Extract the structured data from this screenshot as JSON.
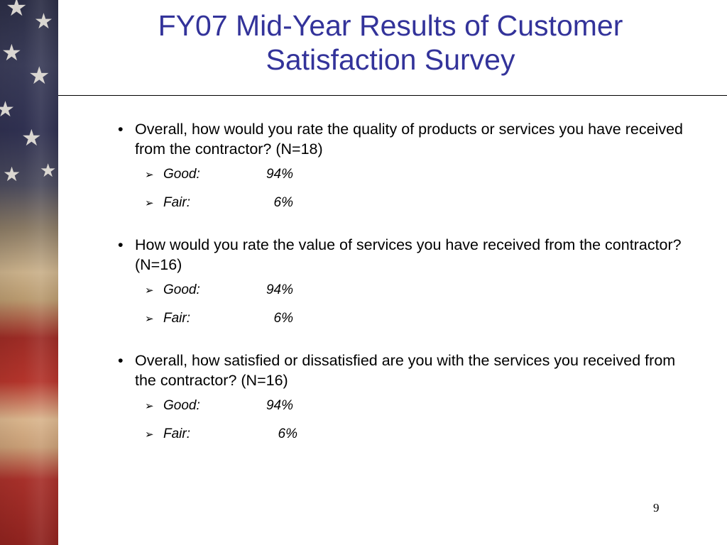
{
  "slide": {
    "title_line1": "FY07 Mid-Year Results of Customer",
    "title_line2": "Satisfaction Survey",
    "page_number": "9"
  },
  "questions": [
    {
      "text": "Overall, how would you rate the quality of products or services you have received from the contractor? (N=18)",
      "answers": [
        {
          "label": "Good:",
          "value": "94%"
        },
        {
          "label": "Fair:",
          "value": "6%"
        }
      ]
    },
    {
      "text": "How would you rate the value of services you have received from the contractor?  (N=16)",
      "answers": [
        {
          "label": "Good:",
          "value": "94%"
        },
        {
          "label": "Fair:",
          "value": "6%"
        }
      ]
    },
    {
      "text": "Overall, how satisfied or dissatisfied are you with the services you received from the contractor? (N=16)",
      "answers": [
        {
          "label": "Good:",
          "value": "94%"
        },
        {
          "label": "Fair:",
          "value": "6%"
        }
      ]
    }
  ],
  "icons": {
    "bullet": "•",
    "arrow": "➢",
    "star": "★"
  },
  "colors": {
    "title": "#33339a",
    "rule": "#000000"
  }
}
